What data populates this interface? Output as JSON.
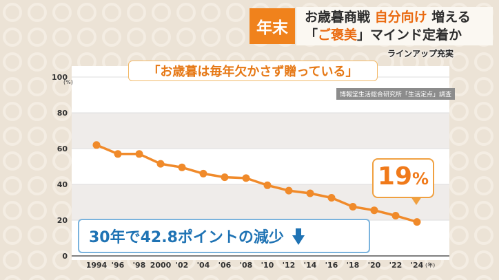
{
  "header": {
    "tag": "年末",
    "headline_line1_a": "お歳暮商戦",
    "headline_line1_hl": "自分向け",
    "headline_line1_b": "増える",
    "headline_line2_a": "「",
    "headline_line2_hl": "ご褒美",
    "headline_line2_b": "」マインド定着か",
    "lineup": "ラインアップ充実"
  },
  "chart_header": {
    "quote": "「お歳暮は毎年欠かさず贈っている」",
    "source": "博報堂生活総合研究所「生活定点」調査"
  },
  "callouts": {
    "last_value": "19",
    "last_unit": "%",
    "summary": "30年で42.8ポイントの減少"
  },
  "colors": {
    "accent": "#f0821c",
    "line": "#f08a2a",
    "summary_text": "#1f73b4"
  },
  "chart_data": {
    "type": "line",
    "title": "「お歳暮は毎年欠かさず贈っている」",
    "y_unit": "(%)",
    "x_unit": "(年)",
    "ylim": [
      0,
      100
    ],
    "yticks": [
      "0",
      "20",
      "40",
      "60",
      "80",
      "100"
    ],
    "categories": [
      "1994",
      "'96",
      "'98",
      "2000",
      "'02",
      "'04",
      "'06",
      "'08",
      "'10",
      "'12",
      "'14",
      "'16",
      "'18",
      "'20",
      "'22",
      "'24"
    ],
    "values": [
      62,
      57,
      57,
      51.5,
      49.5,
      46,
      44,
      43.5,
      39.5,
      36.5,
      35,
      32.5,
      27.5,
      25.5,
      22.5,
      19
    ]
  }
}
